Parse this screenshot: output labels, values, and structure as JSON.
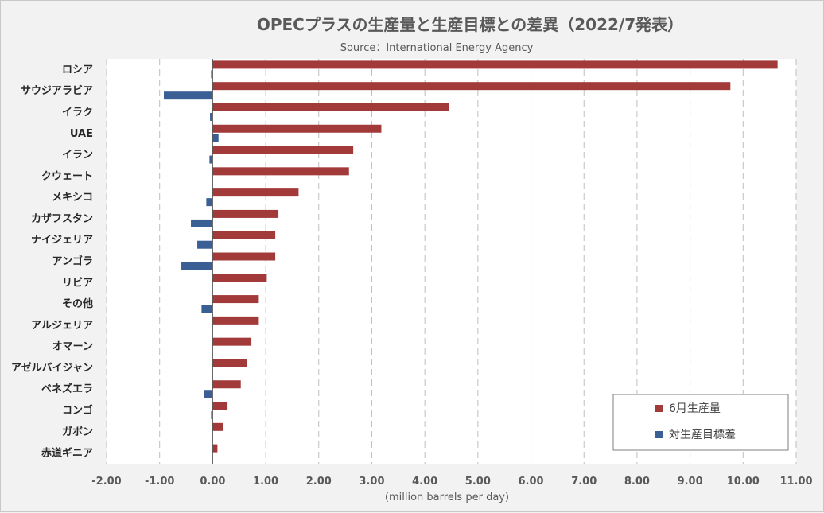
{
  "chart_data": {
    "type": "bar",
    "orientation": "horizontal",
    "title": "OPECプラスの生産量と生産目標との差異（2022/7発表）",
    "subtitle": "Source：International Energy Agency",
    "xlabel": "(million barrels per day)",
    "ylabel": "",
    "xlim": [
      -2.0,
      11.0
    ],
    "xticks": [
      "-2.00",
      "-1.00",
      "0.00",
      "1.00",
      "2.00",
      "3.00",
      "4.00",
      "5.00",
      "6.00",
      "7.00",
      "8.00",
      "9.00",
      "10.00",
      "11.00"
    ],
    "grid": "vertical-dashed",
    "legend_position": "bottom-right",
    "categories": [
      "ロシア",
      "サウジアラビア",
      "イラク",
      "UAE",
      "イラン",
      "クウェート",
      "メキシコ",
      "カザフスタン",
      "ナイジェリア",
      "アンゴラ",
      "リビア",
      "その他",
      "アルジェリア",
      "オマーン",
      "アゼルバイジャン",
      "ベネズエラ",
      "コンゴ",
      "ガボン",
      "赤道ギニア"
    ],
    "series": [
      {
        "name": "6月生産量",
        "color": "#a33a3a",
        "values": [
          10.65,
          9.76,
          4.45,
          3.18,
          2.65,
          2.57,
          1.62,
          1.24,
          1.18,
          1.18,
          1.02,
          0.87,
          0.87,
          0.73,
          0.64,
          0.53,
          0.28,
          0.19,
          0.09
        ]
      },
      {
        "name": "対生産目標差",
        "color": "#3a5f95",
        "values": [
          -0.03,
          -0.92,
          -0.05,
          0.11,
          -0.06,
          0.0,
          -0.12,
          -0.41,
          -0.29,
          -0.59,
          0.0,
          -0.21,
          0.0,
          0.0,
          0.0,
          -0.17,
          -0.03,
          0.0,
          -0.01
        ]
      }
    ]
  }
}
